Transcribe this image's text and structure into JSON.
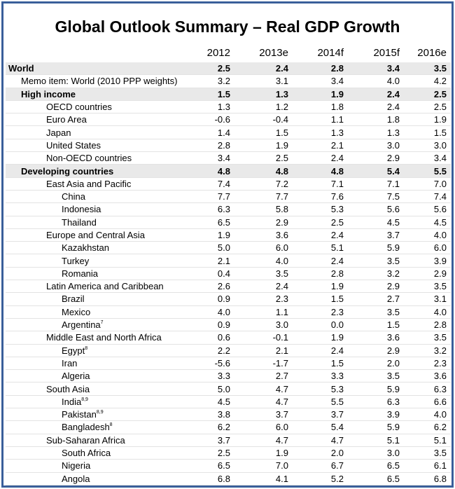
{
  "chart_data": {
    "type": "table",
    "title": "Global Outlook Summary – Real GDP Growth",
    "columns": [
      "2012",
      "2013e",
      "2014f",
      "2015f",
      "2016e"
    ],
    "rows": [
      {
        "label": "World",
        "sup": "",
        "level": 0,
        "bold": true,
        "shade": true,
        "values": [
          "2.5",
          "2.4",
          "2.8",
          "3.4",
          "3.5"
        ]
      },
      {
        "label": "Memo item: World (2010 PPP weights)",
        "sup": "",
        "level": 1,
        "bold": false,
        "shade": false,
        "values": [
          "3.2",
          "3.1",
          "3.4",
          "4.0",
          "4.2"
        ]
      },
      {
        "label": "High income",
        "sup": "",
        "level": 1,
        "bold": true,
        "shade": true,
        "values": [
          "1.5",
          "1.3",
          "1.9",
          "2.4",
          "2.5"
        ]
      },
      {
        "label": "OECD countries",
        "sup": "",
        "level": 2,
        "bold": false,
        "shade": false,
        "values": [
          "1.3",
          "1.2",
          "1.8",
          "2.4",
          "2.5"
        ]
      },
      {
        "label": "Euro Area",
        "sup": "",
        "level": 2,
        "bold": false,
        "shade": false,
        "values": [
          "-0.6",
          "-0.4",
          "1.1",
          "1.8",
          "1.9"
        ]
      },
      {
        "label": "Japan",
        "sup": "",
        "level": 2,
        "bold": false,
        "shade": false,
        "values": [
          "1.4",
          "1.5",
          "1.3",
          "1.3",
          "1.5"
        ]
      },
      {
        "label": "United States",
        "sup": "",
        "level": 2,
        "bold": false,
        "shade": false,
        "values": [
          "2.8",
          "1.9",
          "2.1",
          "3.0",
          "3.0"
        ]
      },
      {
        "label": "Non-OECD countries",
        "sup": "",
        "level": 2,
        "bold": false,
        "shade": false,
        "values": [
          "3.4",
          "2.5",
          "2.4",
          "2.9",
          "3.4"
        ]
      },
      {
        "label": "Developing countries",
        "sup": "",
        "level": 1,
        "bold": true,
        "shade": true,
        "values": [
          "4.8",
          "4.8",
          "4.8",
          "5.4",
          "5.5"
        ]
      },
      {
        "label": "East Asia and Pacific",
        "sup": "",
        "level": 2,
        "bold": false,
        "shade": false,
        "values": [
          "7.4",
          "7.2",
          "7.1",
          "7.1",
          "7.0"
        ]
      },
      {
        "label": "China",
        "sup": "",
        "level": 3,
        "bold": false,
        "shade": false,
        "values": [
          "7.7",
          "7.7",
          "7.6",
          "7.5",
          "7.4"
        ]
      },
      {
        "label": "Indonesia",
        "sup": "",
        "level": 3,
        "bold": false,
        "shade": false,
        "values": [
          "6.3",
          "5.8",
          "5.3",
          "5.6",
          "5.6"
        ]
      },
      {
        "label": "Thailand",
        "sup": "",
        "level": 3,
        "bold": false,
        "shade": false,
        "values": [
          "6.5",
          "2.9",
          "2.5",
          "4.5",
          "4.5"
        ]
      },
      {
        "label": "Europe and Central Asia",
        "sup": "",
        "level": 2,
        "bold": false,
        "shade": false,
        "values": [
          "1.9",
          "3.6",
          "2.4",
          "3.7",
          "4.0"
        ]
      },
      {
        "label": "Kazakhstan",
        "sup": "",
        "level": 3,
        "bold": false,
        "shade": false,
        "values": [
          "5.0",
          "6.0",
          "5.1",
          "5.9",
          "6.0"
        ]
      },
      {
        "label": "Turkey",
        "sup": "",
        "level": 3,
        "bold": false,
        "shade": false,
        "values": [
          "2.1",
          "4.0",
          "2.4",
          "3.5",
          "3.9"
        ]
      },
      {
        "label": "Romania",
        "sup": "",
        "level": 3,
        "bold": false,
        "shade": false,
        "values": [
          "0.4",
          "3.5",
          "2.8",
          "3.2",
          "2.9"
        ]
      },
      {
        "label": "Latin America and Caribbean",
        "sup": "",
        "level": 2,
        "bold": false,
        "shade": false,
        "values": [
          "2.6",
          "2.4",
          "1.9",
          "2.9",
          "3.5"
        ]
      },
      {
        "label": "Brazil",
        "sup": "",
        "level": 3,
        "bold": false,
        "shade": false,
        "values": [
          "0.9",
          "2.3",
          "1.5",
          "2.7",
          "3.1"
        ]
      },
      {
        "label": "Mexico",
        "sup": "",
        "level": 3,
        "bold": false,
        "shade": false,
        "values": [
          "4.0",
          "1.1",
          "2.3",
          "3.5",
          "4.0"
        ]
      },
      {
        "label": "Argentina",
        "sup": "7",
        "level": 3,
        "bold": false,
        "shade": false,
        "values": [
          "0.9",
          "3.0",
          "0.0",
          "1.5",
          "2.8"
        ]
      },
      {
        "label": "Middle East and North Africa",
        "sup": "",
        "level": 2,
        "bold": false,
        "shade": false,
        "values": [
          "0.6",
          "-0.1",
          "1.9",
          "3.6",
          "3.5"
        ]
      },
      {
        "label": "Egypt",
        "sup": "8",
        "level": 3,
        "bold": false,
        "shade": false,
        "values": [
          "2.2",
          "2.1",
          "2.4",
          "2.9",
          "3.2"
        ]
      },
      {
        "label": "Iran",
        "sup": "",
        "level": 3,
        "bold": false,
        "shade": false,
        "values": [
          "-5.6",
          "-1.7",
          "1.5",
          "2.0",
          "2.3"
        ]
      },
      {
        "label": "Algeria",
        "sup": "",
        "level": 3,
        "bold": false,
        "shade": false,
        "values": [
          "3.3",
          "2.7",
          "3.3",
          "3.5",
          "3.6"
        ]
      },
      {
        "label": "South Asia",
        "sup": "",
        "level": 2,
        "bold": false,
        "shade": false,
        "values": [
          "5.0",
          "4.7",
          "5.3",
          "5.9",
          "6.3"
        ]
      },
      {
        "label": "India",
        "sup": "8,9",
        "level": 3,
        "bold": false,
        "shade": false,
        "values": [
          "4.5",
          "4.7",
          "5.5",
          "6.3",
          "6.6"
        ]
      },
      {
        "label": "Pakistan",
        "sup": "8,9",
        "level": 3,
        "bold": false,
        "shade": false,
        "values": [
          "3.8",
          "3.7",
          "3.7",
          "3.9",
          "4.0"
        ]
      },
      {
        "label": "Bangladesh",
        "sup": "8",
        "level": 3,
        "bold": false,
        "shade": false,
        "values": [
          "6.2",
          "6.0",
          "5.4",
          "5.9",
          "6.2"
        ]
      },
      {
        "label": "Sub-Saharan Africa",
        "sup": "",
        "level": 2,
        "bold": false,
        "shade": false,
        "values": [
          "3.7",
          "4.7",
          "4.7",
          "5.1",
          "5.1"
        ]
      },
      {
        "label": "South Africa",
        "sup": "",
        "level": 3,
        "bold": false,
        "shade": false,
        "values": [
          "2.5",
          "1.9",
          "2.0",
          "3.0",
          "3.5"
        ]
      },
      {
        "label": "Nigeria",
        "sup": "",
        "level": 3,
        "bold": false,
        "shade": false,
        "values": [
          "6.5",
          "7.0",
          "6.7",
          "6.5",
          "6.1"
        ]
      },
      {
        "label": "Angola",
        "sup": "",
        "level": 3,
        "bold": false,
        "shade": false,
        "values": [
          "6.8",
          "4.1",
          "5.2",
          "6.5",
          "6.8"
        ]
      }
    ]
  }
}
